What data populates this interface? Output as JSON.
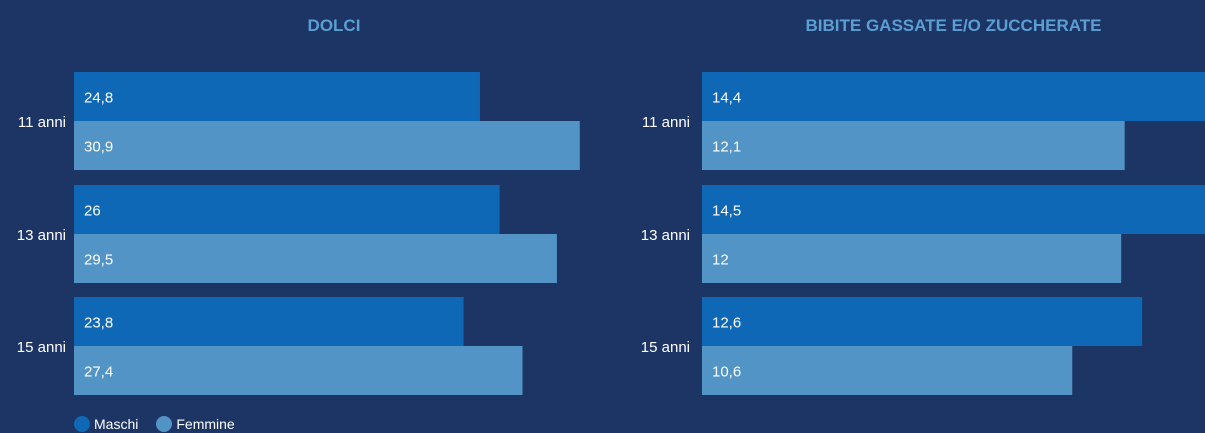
{
  "colors": {
    "background": "#1d3564",
    "maschi": "#0f68b5",
    "femmine": "#5294c5",
    "title": "#5a9fd4"
  },
  "legend": {
    "maschi": "Maschi",
    "femmine": "Femmine"
  },
  "chart_data": [
    {
      "type": "bar",
      "orientation": "horizontal",
      "title": "DOLCI",
      "categories": [
        "11 anni",
        "13 anni",
        "15 anni"
      ],
      "series": [
        {
          "name": "Maschi",
          "values": [
            24.8,
            26,
            23.8
          ],
          "labels": [
            "24,8",
            "26",
            "23,8"
          ]
        },
        {
          "name": "Femmine",
          "values": [
            30.9,
            29.5,
            27.4
          ],
          "labels": [
            "30,9",
            "29,5",
            "27,4"
          ]
        }
      ],
      "xlim": [
        0,
        31.4
      ],
      "grid": false,
      "legend_position": "bottom-left"
    },
    {
      "type": "bar",
      "orientation": "horizontal",
      "title": "BIBITE GASSATE E/O ZUCCHERATE",
      "categories": [
        "11 anni",
        "13 anni",
        "15 anni"
      ],
      "series": [
        {
          "name": "Maschi",
          "values": [
            14.4,
            14.5,
            12.6
          ],
          "labels": [
            "14,4",
            "14,5",
            "12,6"
          ]
        },
        {
          "name": "Femmine",
          "values": [
            12.1,
            12,
            10.6
          ],
          "labels": [
            "12,1",
            "12",
            "10,6"
          ]
        }
      ],
      "xlim": [
        0,
        14.4
      ],
      "grid": false,
      "legend_position": "bottom-left"
    }
  ]
}
